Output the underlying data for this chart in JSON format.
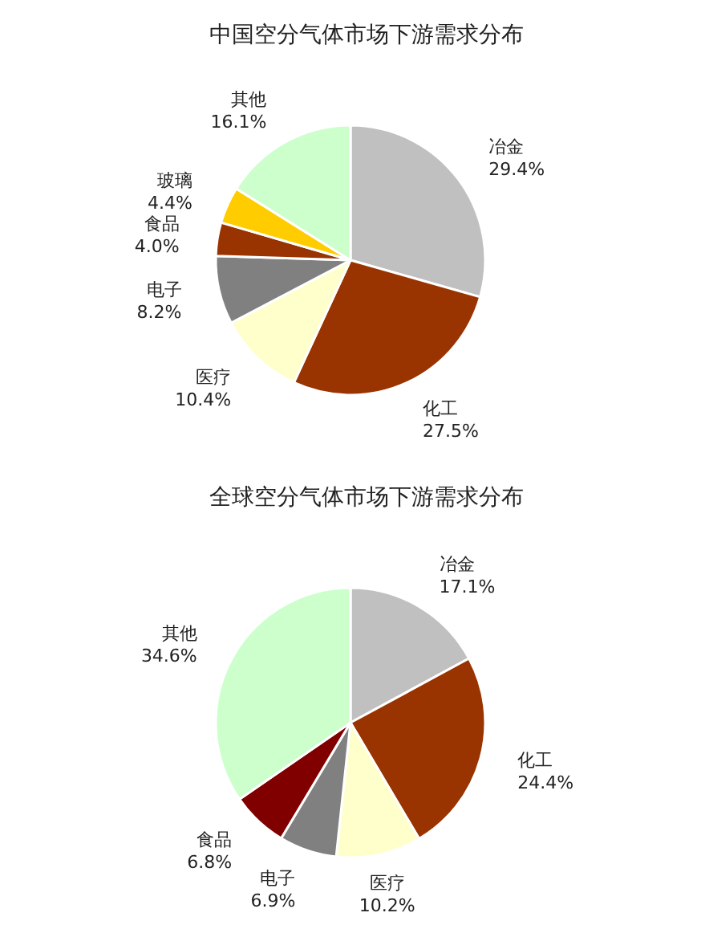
{
  "chart_data": [
    {
      "type": "pie",
      "title": "中国空分气体市场下游需求分布",
      "categories": [
        "冶金",
        "化工",
        "医疗",
        "电子",
        "食品",
        "玻璃",
        "其他"
      ],
      "values": [
        29.4,
        27.5,
        10.4,
        8.2,
        4.0,
        4.4,
        16.1
      ],
      "colors": [
        "#c0c0c0",
        "#993300",
        "#ffffcc",
        "#808080",
        "#993300",
        "#ffcc00",
        "#ccffcc"
      ],
      "value_labels": [
        "29.4%",
        "27.5%",
        "10.4%",
        "8.2%",
        "4.0%",
        "4.4%",
        "16.1%"
      ]
    },
    {
      "type": "pie",
      "title": "全球空分气体市场下游需求分布",
      "categories": [
        "冶金",
        "化工",
        "医疗",
        "电子",
        "食品",
        "其他"
      ],
      "values": [
        17.1,
        24.4,
        10.2,
        6.9,
        6.8,
        34.6
      ],
      "colors": [
        "#c0c0c0",
        "#993300",
        "#ffffcc",
        "#808080",
        "#800000",
        "#ccffcc"
      ],
      "value_labels": [
        "17.1%",
        "24.4%",
        "10.2%",
        "6.9%",
        "6.8%",
        "34.6%"
      ]
    }
  ]
}
